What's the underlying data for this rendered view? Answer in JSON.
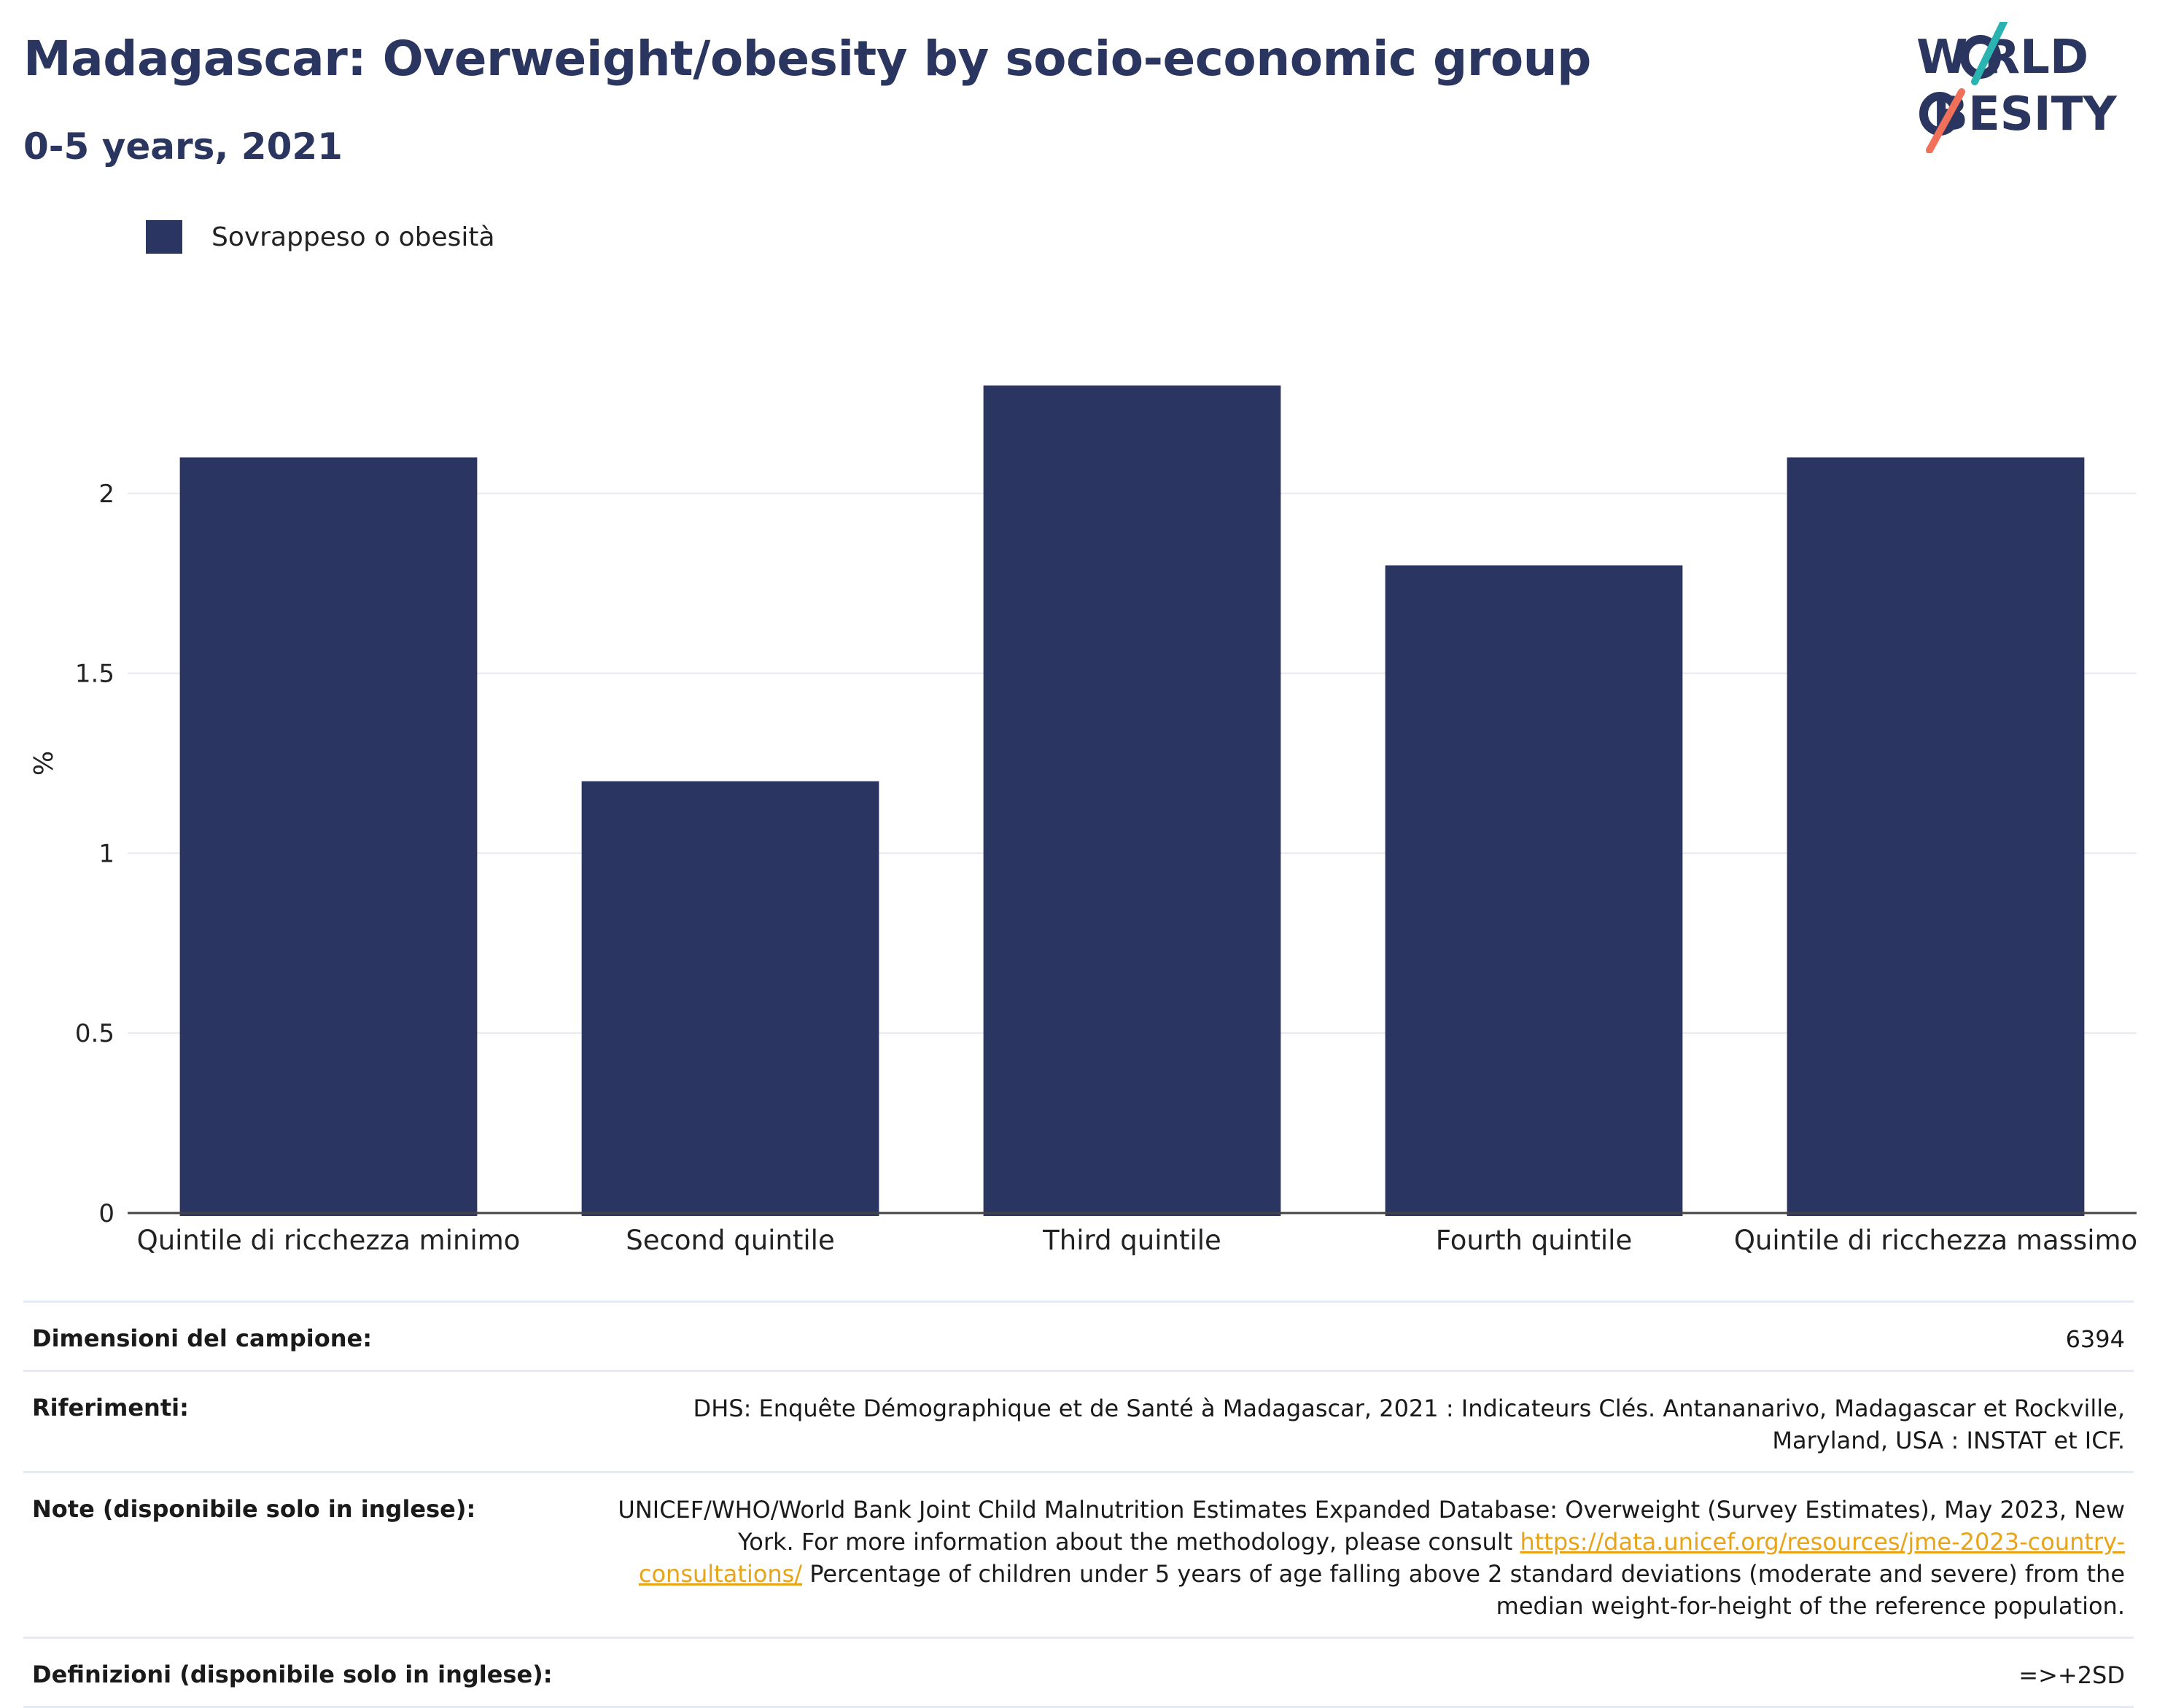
{
  "header": {
    "title": "Madagascar: Overweight/obesity by socio-economic group",
    "subtitle": "0-5 years, 2021"
  },
  "logo": {
    "line1": "W RLD",
    "line2": " BESITY",
    "accent_teal": "#2bb3b1",
    "accent_coral": "#f0705a"
  },
  "legend": {
    "label": "Sovrappeso o obesità"
  },
  "colors": {
    "bar": "#2b3562",
    "grid": "#e6e9f0",
    "axis": "#444444",
    "title": "#2b3660"
  },
  "chart_data": {
    "type": "bar",
    "categories": [
      "Quintile di ricchezza minimo",
      "Second quintile",
      "Third quintile",
      "Fourth quintile",
      "Quintile di ricchezza massimo"
    ],
    "series": [
      {
        "name": "Sovrappeso o obesità",
        "values": [
          2.1,
          1.2,
          2.3,
          1.8,
          2.1
        ]
      }
    ],
    "ylabel": "%",
    "ylim": [
      0,
      2.5
    ],
    "yticks": [
      0,
      0.5,
      1,
      1.5,
      2
    ],
    "ytick_labels": [
      "0",
      "0.5",
      "1",
      "1.5",
      "2"
    ],
    "grid": true,
    "legend_position": "top-left"
  },
  "info": {
    "rows": [
      {
        "key": "Dimensioni del campione:",
        "value": "6394"
      },
      {
        "key": "Riferimenti:",
        "value": "DHS: Enquête Démographique et de Santé à Madagascar, 2021 : Indicateurs Clés. Antananarivo, Madagascar et Rockville, Maryland, USA : INSTAT et ICF."
      },
      {
        "key": "Note (disponibile solo in inglese):",
        "value_pre": "UNICEF/WHO/World Bank Joint Child Malnutrition Estimates Expanded Database: Overweight (Survey Estimates), May 2023, New York. For more information about the methodology, please consult ",
        "link": "https://data.unicef.org/resources/jme-2023-country-consultations/",
        "value_post": " Percentage of children under 5 years of age falling above 2 standard deviations (moderate and severe) from the median weight-for-height of the reference population."
      },
      {
        "key": "Definizioni (disponibile solo in inglese):",
        "value": "=>+2SD"
      }
    ]
  }
}
